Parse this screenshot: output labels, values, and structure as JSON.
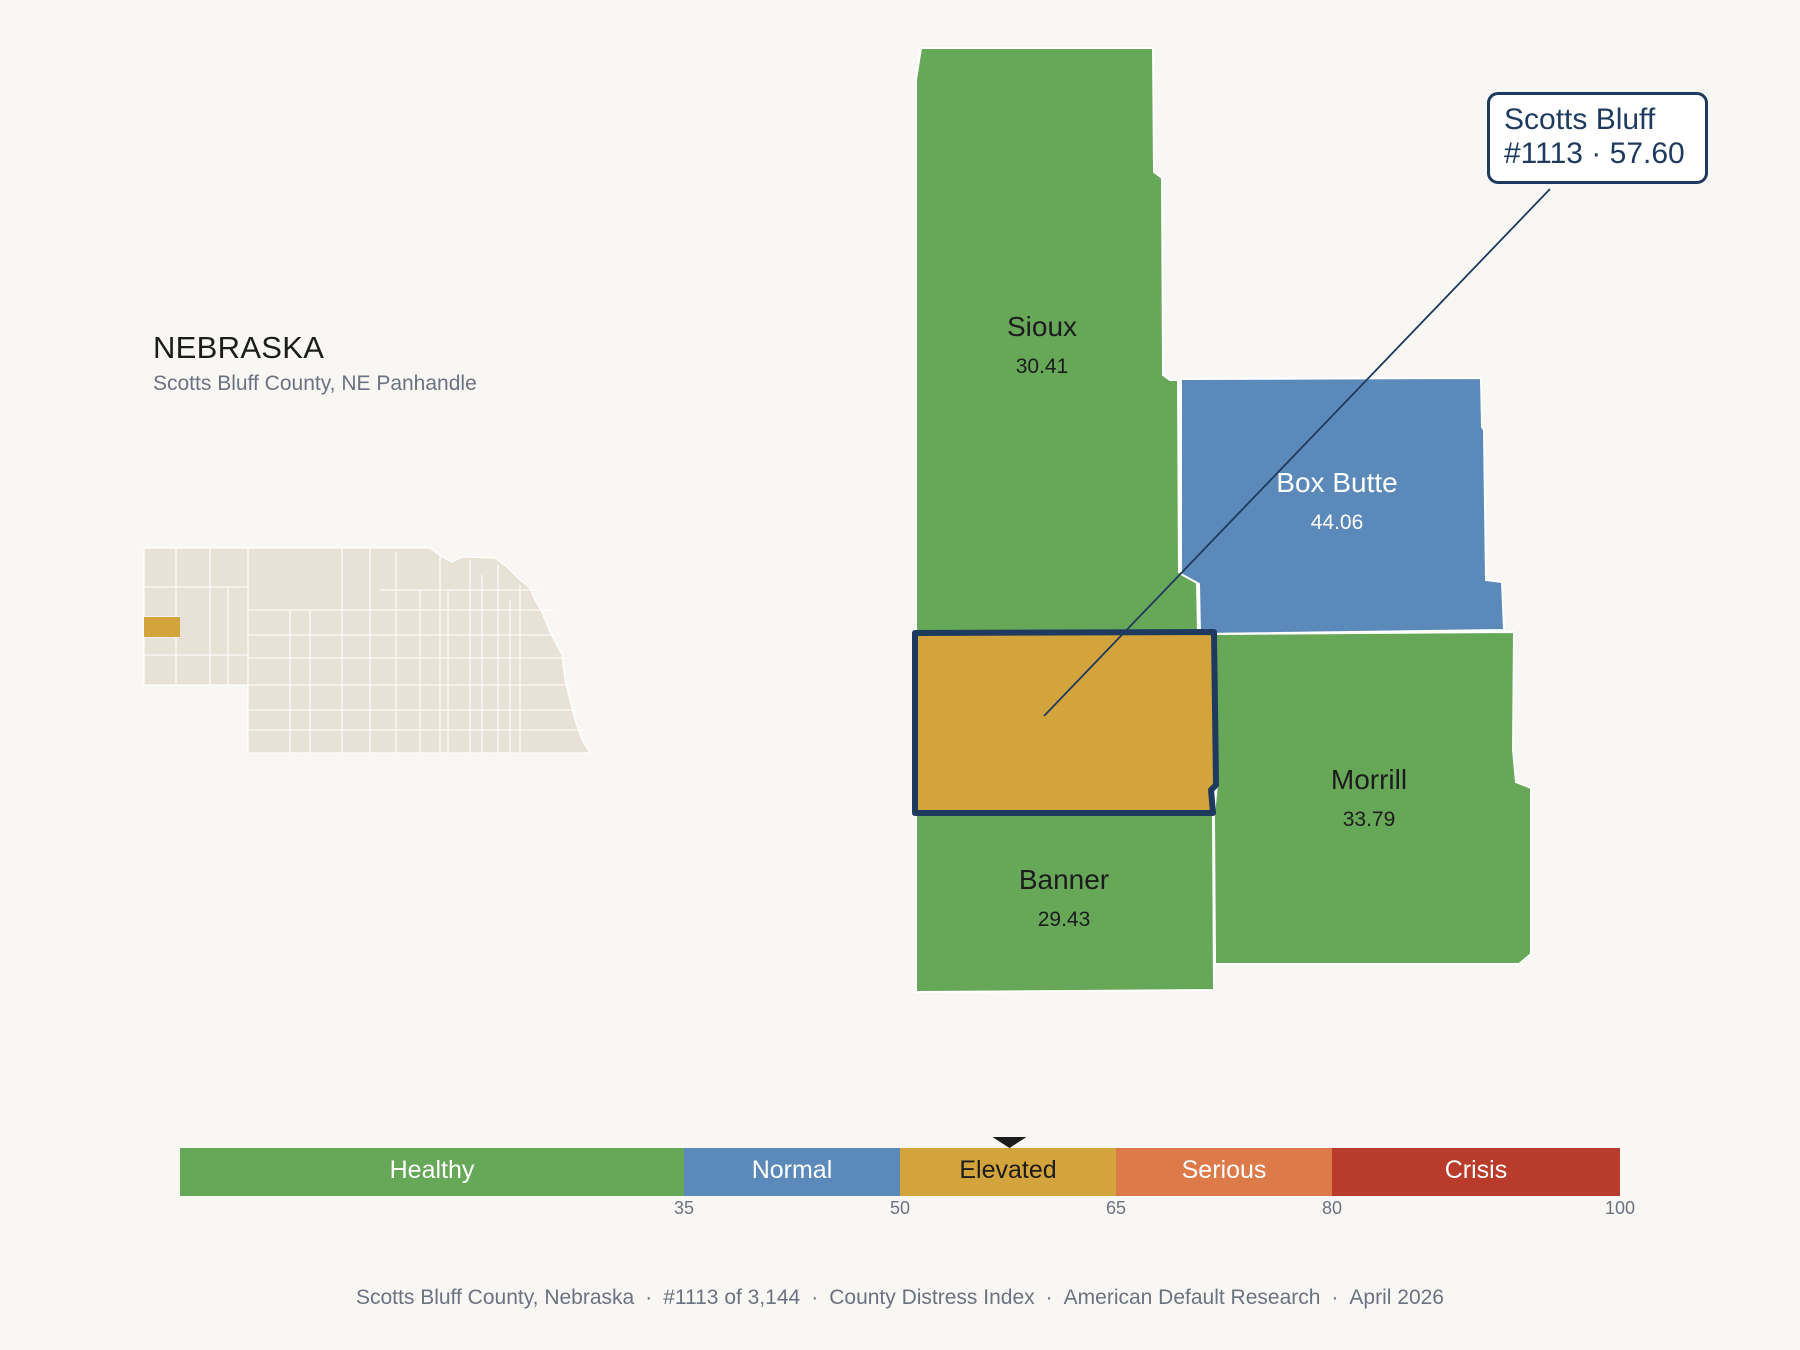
{
  "state": {
    "title": "NEBRASKA",
    "subtitle": "Scotts Bluff County, NE Panhandle"
  },
  "focus": {
    "name": "Scotts Bluff",
    "rank_score": "#1113 · 57.60",
    "score": 57.6,
    "color": "#d4a43c",
    "outline_color": "#1f3a5f"
  },
  "neighbors": [
    {
      "name": "Sioux",
      "score": "30.41",
      "color": "#66a758",
      "text_color": "#1c1c1c"
    },
    {
      "name": "Box Butte",
      "score": "44.06",
      "color": "#5b89b9",
      "text_color": "#ffffff"
    },
    {
      "name": "Morrill",
      "score": "33.79",
      "color": "#66a758",
      "text_color": "#1c1c1c"
    },
    {
      "name": "Banner",
      "score": "29.43",
      "color": "#66a758",
      "text_color": "#1c1c1c"
    }
  ],
  "inset": {
    "base_color": "#e8e2d6",
    "highlight_color": "#d4a43c"
  },
  "scale": {
    "min": 0,
    "max": 100,
    "marker_value": 57.6,
    "bands": [
      {
        "label": "Healthy",
        "from": 0,
        "to": 35,
        "color": "#66a758",
        "text_color": "#ffffff"
      },
      {
        "label": "Normal",
        "from": 35,
        "to": 50,
        "color": "#5b89b9",
        "text_color": "#ffffff"
      },
      {
        "label": "Elevated",
        "from": 50,
        "to": 65,
        "color": "#d4a43c",
        "text_color": "#1c1c1c"
      },
      {
        "label": "Serious",
        "from": 65,
        "to": 80,
        "color": "#dd7a4a",
        "text_color": "#ffffff"
      },
      {
        "label": "Crisis",
        "from": 80,
        "to": 100,
        "color": "#b93b2c",
        "text_color": "#ffffff"
      }
    ],
    "ticks": [
      "35",
      "50",
      "65",
      "80",
      "100"
    ]
  },
  "footer": {
    "county": "Scotts Bluff County, Nebraska",
    "rank": "#1113 of 3,144",
    "index": "County Distress Index",
    "org": "American Default Research",
    "date": "April 2026"
  }
}
